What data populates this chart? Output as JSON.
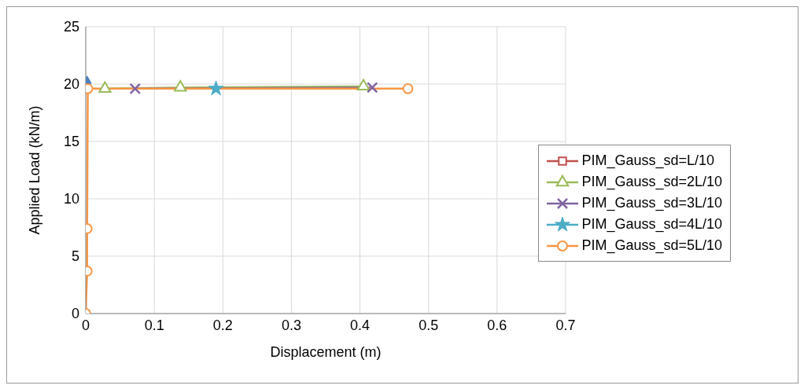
{
  "chart_data": {
    "type": "line",
    "xlabel": "Displacement (m)",
    "ylabel": "Applied Load (kN/m)",
    "xlim": [
      0,
      0.7
    ],
    "xticks": [
      0,
      0.1,
      0.2,
      0.3,
      0.4,
      0.5,
      0.6,
      0.7
    ],
    "ylim": [
      0,
      25
    ],
    "yticks": [
      0,
      5,
      10,
      15,
      20,
      25
    ],
    "grid": true,
    "legend": "right",
    "series": [
      {
        "color": "#4f81bd",
        "marker": "diamond",
        "x": [
          0.002
        ],
        "values": [
          20.1
        ]
      },
      {
        "name": "PIM_Gauss_sd=L/10",
        "color": "#c0504d",
        "marker": "square"
      },
      {
        "name": "PIM_Gauss_sd=2L/10",
        "color": "#9bbb59",
        "marker": "triangle",
        "x": [
          0.028,
          0.138,
          0.405
        ],
        "values": [
          19.6,
          19.7,
          19.8
        ]
      },
      {
        "name": "PIM_Gauss_sd=3L/10",
        "color": "#8064a2",
        "marker": "cross",
        "x": [
          0.072,
          0.418
        ],
        "values": [
          19.6,
          19.7
        ]
      },
      {
        "name": "PIM_Gauss_sd=4L/10",
        "color": "#4bacc6",
        "marker": "star",
        "x": [
          0.19
        ],
        "values": [
          19.6
        ]
      },
      {
        "name": "PIM_Gauss_sd=5L/10",
        "color": "#f79646",
        "marker": "circle",
        "x": [
          0,
          0.002,
          0.002,
          0.003,
          0.47
        ],
        "values": [
          0,
          3.7,
          7.4,
          19.6,
          19.6
        ]
      }
    ]
  }
}
